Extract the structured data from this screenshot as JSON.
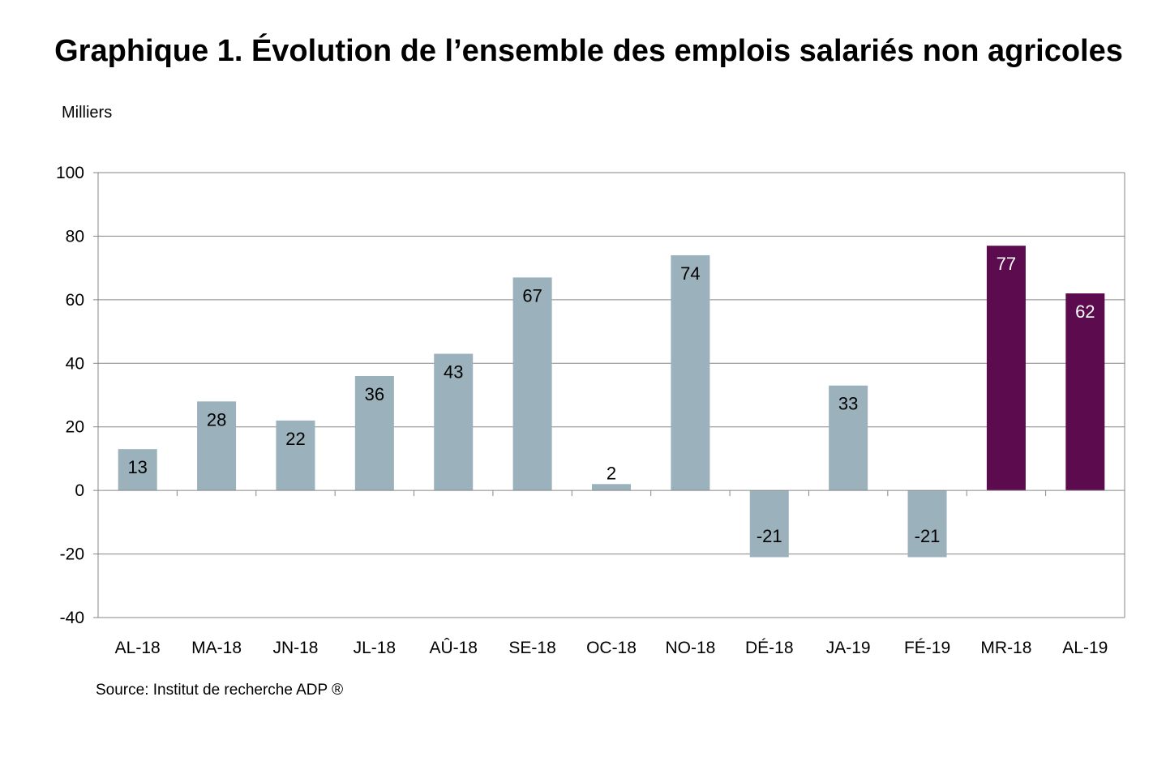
{
  "chart_data": {
    "type": "bar",
    "title": "Graphique 1. Évolution de l’ensemble des emplois salariés non agricoles",
    "unit_label": "Milliers",
    "source": "Source: Institut de recherche ADP ®",
    "categories": [
      "AL-18",
      "MA-18",
      "JN-18",
      "JL-18",
      "AÛ-18",
      "SE-18",
      "OC-18",
      "NO-18",
      "DÉ-18",
      "JA-19",
      "FÉ-19",
      "MR-18",
      "AL-19"
    ],
    "values": [
      13,
      28,
      22,
      36,
      43,
      67,
      2,
      74,
      -21,
      33,
      -21,
      77,
      62
    ],
    "bar_colors": [
      "#9bb1bc",
      "#9bb1bc",
      "#9bb1bc",
      "#9bb1bc",
      "#9bb1bc",
      "#9bb1bc",
      "#9bb1bc",
      "#9bb1bc",
      "#9bb1bc",
      "#9bb1bc",
      "#9bb1bc",
      "#5c0b4f",
      "#5c0b4f"
    ],
    "label_colors": [
      "#000000",
      "#000000",
      "#000000",
      "#000000",
      "#000000",
      "#000000",
      "#000000",
      "#000000",
      "#000000",
      "#000000",
      "#000000",
      "#ffffff",
      "#ffffff"
    ],
    "ylim": [
      -40,
      100
    ],
    "yticks": [
      100,
      80,
      60,
      40,
      20,
      0,
      -20,
      -40
    ],
    "grid": true,
    "gridline_color": "#868686"
  }
}
